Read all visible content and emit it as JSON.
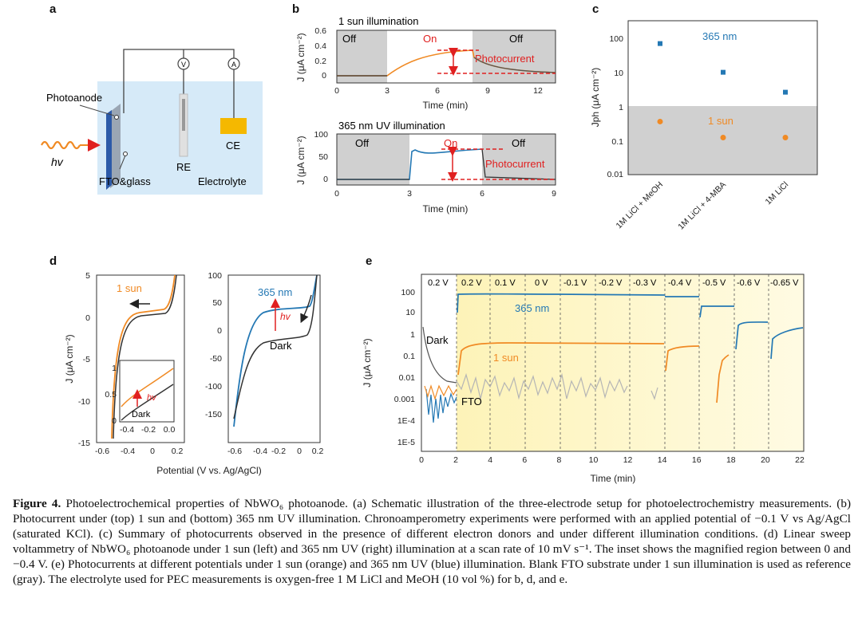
{
  "panels": {
    "a": {
      "label": "a",
      "photoanode": "Photoanode",
      "hv": "hv",
      "fto": "FTO&glass",
      "re": "RE",
      "electrolyte": "Electrolyte",
      "ce": "CE",
      "meter_v": "V",
      "meter_a": "A"
    },
    "b": {
      "label": "b",
      "top": {
        "title": "1 sun illumination",
        "ylabel": "J (μA cm⁻²)",
        "xlabel": "Time (min)",
        "off1": "Off",
        "on": "On",
        "off2": "Off",
        "photocurrent": "Photocurrent",
        "xticks": [
          "0",
          "3",
          "6",
          "9",
          "12"
        ],
        "yticks": [
          "0",
          "0.2",
          "0.4",
          "0.6"
        ]
      },
      "bottom": {
        "title": "365 nm UV illumination",
        "ylabel": "J (μA cm⁻²)",
        "xlabel": "Time (min)",
        "off1": "Off",
        "on": "On",
        "off2": "Off",
        "photocurrent": "Photocurrent",
        "xticks": [
          "0",
          "3",
          "6",
          "9"
        ],
        "yticks": [
          "0",
          "50",
          "100"
        ]
      }
    },
    "c": {
      "label": "c",
      "ylabel": "Jph (μA cm⁻²)",
      "yticks": [
        "0.01",
        "0.1",
        "1",
        "10",
        "100"
      ],
      "label_uv": "365 nm",
      "label_sun": "1 sun"
    },
    "d": {
      "label": "d",
      "xlabel": "Potential (V vs. Ag/AgCl)",
      "ylabel": "J (μA cm⁻²)",
      "left": {
        "xticks": [
          "-0.6",
          "-0.4",
          "-0.2",
          "0",
          "0.2"
        ],
        "yticks": [
          "-15",
          "-10",
          "-5",
          "0",
          "5"
        ],
        "label_sun": "1 sun",
        "inset": {
          "xticks": [
            "-0.4",
            "-0.2",
            "0.0"
          ],
          "yticks": [
            "0",
            "0.5",
            "1"
          ],
          "hv": "hv",
          "dark": "Dark"
        }
      },
      "right": {
        "xticks": [
          "-0.6",
          "-0.4",
          "-0.2",
          "0",
          "0.2"
        ],
        "yticks": [
          "-150",
          "-100",
          "-50",
          "0",
          "50",
          "100"
        ],
        "label_uv": "365 nm",
        "hv": "hv",
        "dark": "Dark"
      }
    },
    "e": {
      "label": "e",
      "xlabel": "Time (min)",
      "ylabel": "J (μA cm⁻²)",
      "xticks": [
        "0",
        "2",
        "4",
        "6",
        "8",
        "10",
        "12",
        "14",
        "16",
        "18",
        "20",
        "22"
      ],
      "yticks": [
        "1E-5",
        "1E-4",
        "0.001",
        "0.01",
        "0.1",
        "1",
        "10",
        "100"
      ],
      "potentials": [
        "0.2 V",
        "0.2 V",
        "0.1 V",
        "0 V",
        "-0.1 V",
        "-0.2 V",
        "-0.3 V",
        "-0.4 V",
        "-0.5 V",
        "-0.6 V",
        "-0.65 V"
      ],
      "label_uv": "365 nm",
      "label_sun": "1 sun",
      "label_dark": "Dark",
      "label_fto": "FTO"
    }
  },
  "caption": {
    "prefix": "Figure 4.",
    "text": "Photoelectrochemical properties of NbWO₆ photoanode. (a) Schematic illustration of the three-electrode setup for photoelectrochemistry measurements. (b) Photocurrent under (top) 1 sun and (bottom) 365 nm UV illumination. Chronoamperometry experiments were performed with an applied potential of −0.1 V vs Ag/AgCl (saturated KCl). (c) Summary of photocurrents observed in the presence of different electron donors and under different illumination conditions. (d) Linear sweep voltammetry of NbWO₆ photoanode under 1 sun (left) and 365 nm UV (right) illumination at a scan rate of 10 mV s⁻¹. The inset shows the magnified region between 0 and −0.4 V. (e) Photocurrents at different potentials under 1 sun (orange) and 365 nm UV (blue) illumination. Blank FTO substrate under 1 sun illumination is used as reference (gray). The electrolyte used for PEC measurements is oxygen-free 1 M LiCl and MeOH (10 vol %) for b, d, and e."
  },
  "colors": {
    "orange": "#f08a24",
    "blue": "#2478b4",
    "dark": "#3a3a3a",
    "red": "#e02020",
    "gray": "#b5b5b5",
    "shade": "#d0d0d0",
    "cyan_bg": "#d6eaf8",
    "yellow": "#fdf6c6"
  },
  "chart_data": [
    {
      "type": "scatter",
      "panel": "c",
      "categories": [
        "1M LiCl + MeOH",
        "1M LiCl + 4-MBA",
        "1M LiCl"
      ],
      "series": [
        {
          "name": "365 nm",
          "values": [
            65,
            9.5,
            2.5
          ]
        },
        {
          "name": "1 sun",
          "values": [
            0.35,
            0.12,
            0.12
          ]
        }
      ],
      "ylabel": "Jph (μA cm⁻²)",
      "yscale": "log",
      "ylim": [
        0.01,
        300
      ]
    }
  ]
}
